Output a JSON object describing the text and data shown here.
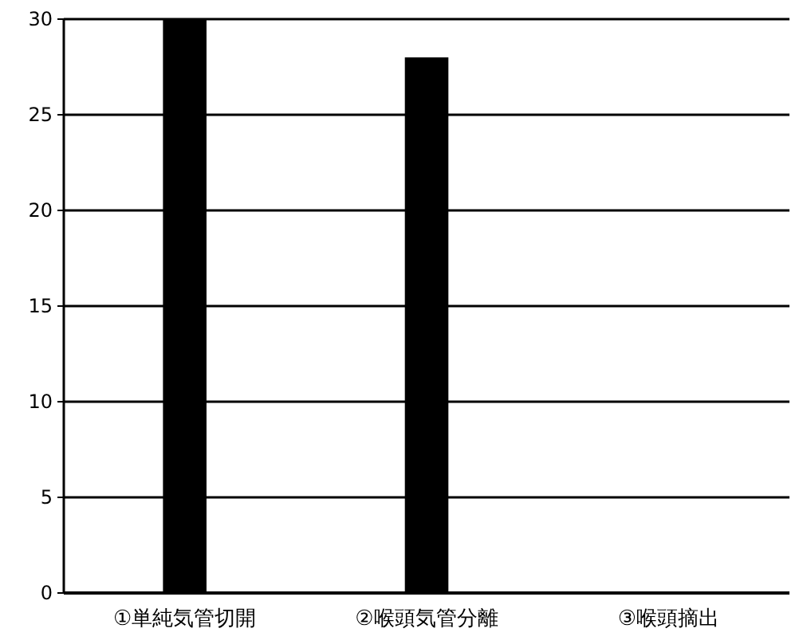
{
  "chart_data": {
    "type": "bar",
    "categories": [
      "①単純気管切開",
      "②喉頭気管分離",
      "③喉頭摘出"
    ],
    "values": [
      30,
      28,
      0
    ],
    "color": "#000000",
    "ylim": [
      0,
      30
    ],
    "yticks": [
      0,
      5,
      10,
      15,
      20,
      25,
      30
    ],
    "grid": "y"
  }
}
